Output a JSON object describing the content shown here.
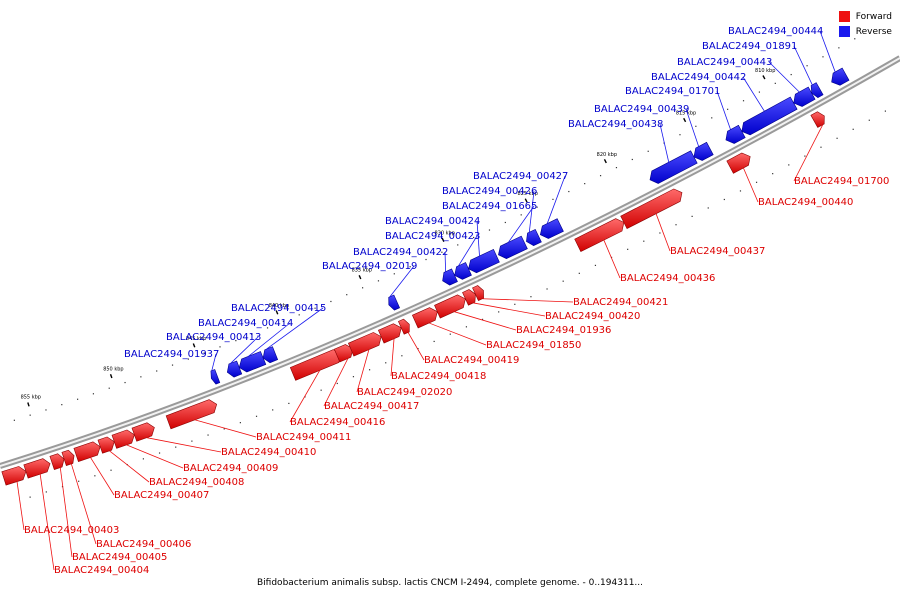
{
  "legend": {
    "forward": {
      "label": "Forward",
      "color": "#ee1111"
    },
    "reverse": {
      "label": "Reverse",
      "color": "#1a1aee"
    }
  },
  "caption": "Bifidobacterium animalis subsp. lactis CNCM I-2494, complete genome. - 0..194311...",
  "ticks": [
    "855 kbp",
    "850 kbp",
    "845 kbp",
    "840 kbp",
    "835 kbp",
    "830 kbp",
    "825 kbp",
    "820 kbp",
    "815 kbp",
    "810 kbp"
  ],
  "genes": [
    {
      "name": "BALAC2494_00403",
      "strand": "forward"
    },
    {
      "name": "BALAC2494_00404",
      "strand": "forward"
    },
    {
      "name": "BALAC2494_00405",
      "strand": "forward"
    },
    {
      "name": "BALAC2494_00406",
      "strand": "forward"
    },
    {
      "name": "BALAC2494_00407",
      "strand": "forward"
    },
    {
      "name": "BALAC2494_00408",
      "strand": "forward"
    },
    {
      "name": "BALAC2494_00409",
      "strand": "forward"
    },
    {
      "name": "BALAC2494_00410",
      "strand": "forward"
    },
    {
      "name": "BALAC2494_00411",
      "strand": "forward"
    },
    {
      "name": "BALAC2494_00416",
      "strand": "forward"
    },
    {
      "name": "BALAC2494_00417",
      "strand": "forward"
    },
    {
      "name": "BALAC2494_02020",
      "strand": "forward"
    },
    {
      "name": "BALAC2494_00418",
      "strand": "forward"
    },
    {
      "name": "BALAC2494_00419",
      "strand": "forward"
    },
    {
      "name": "BALAC2494_01850",
      "strand": "forward"
    },
    {
      "name": "BALAC2494_01936",
      "strand": "forward"
    },
    {
      "name": "BALAC2494_00420",
      "strand": "forward"
    },
    {
      "name": "BALAC2494_00421",
      "strand": "forward"
    },
    {
      "name": "BALAC2494_00436",
      "strand": "forward"
    },
    {
      "name": "BALAC2494_00437",
      "strand": "forward"
    },
    {
      "name": "BALAC2494_00440",
      "strand": "forward"
    },
    {
      "name": "BALAC2494_01700",
      "strand": "forward"
    },
    {
      "name": "BALAC2494_01937",
      "strand": "reverse"
    },
    {
      "name": "BALAC2494_00413",
      "strand": "reverse"
    },
    {
      "name": "BALAC2494_00414",
      "strand": "reverse"
    },
    {
      "name": "BALAC2494_00415",
      "strand": "reverse"
    },
    {
      "name": "BALAC2494_02019",
      "strand": "reverse"
    },
    {
      "name": "BALAC2494_00422",
      "strand": "reverse"
    },
    {
      "name": "BALAC2494_00423",
      "strand": "reverse"
    },
    {
      "name": "BALAC2494_00424",
      "strand": "reverse"
    },
    {
      "name": "BALAC2494_01665",
      "strand": "reverse"
    },
    {
      "name": "BALAC2494_00426",
      "strand": "reverse"
    },
    {
      "name": "BALAC2494_00427",
      "strand": "reverse"
    },
    {
      "name": "BALAC2494_00438",
      "strand": "reverse"
    },
    {
      "name": "BALAC2494_00439",
      "strand": "reverse"
    },
    {
      "name": "BALAC2494_01701",
      "strand": "reverse"
    },
    {
      "name": "BALAC2494_00442",
      "strand": "reverse"
    },
    {
      "name": "BALAC2494_00443",
      "strand": "reverse"
    },
    {
      "name": "BALAC2494_01891",
      "strand": "reverse"
    },
    {
      "name": "BALAC2494_00444",
      "strand": "reverse"
    }
  ]
}
